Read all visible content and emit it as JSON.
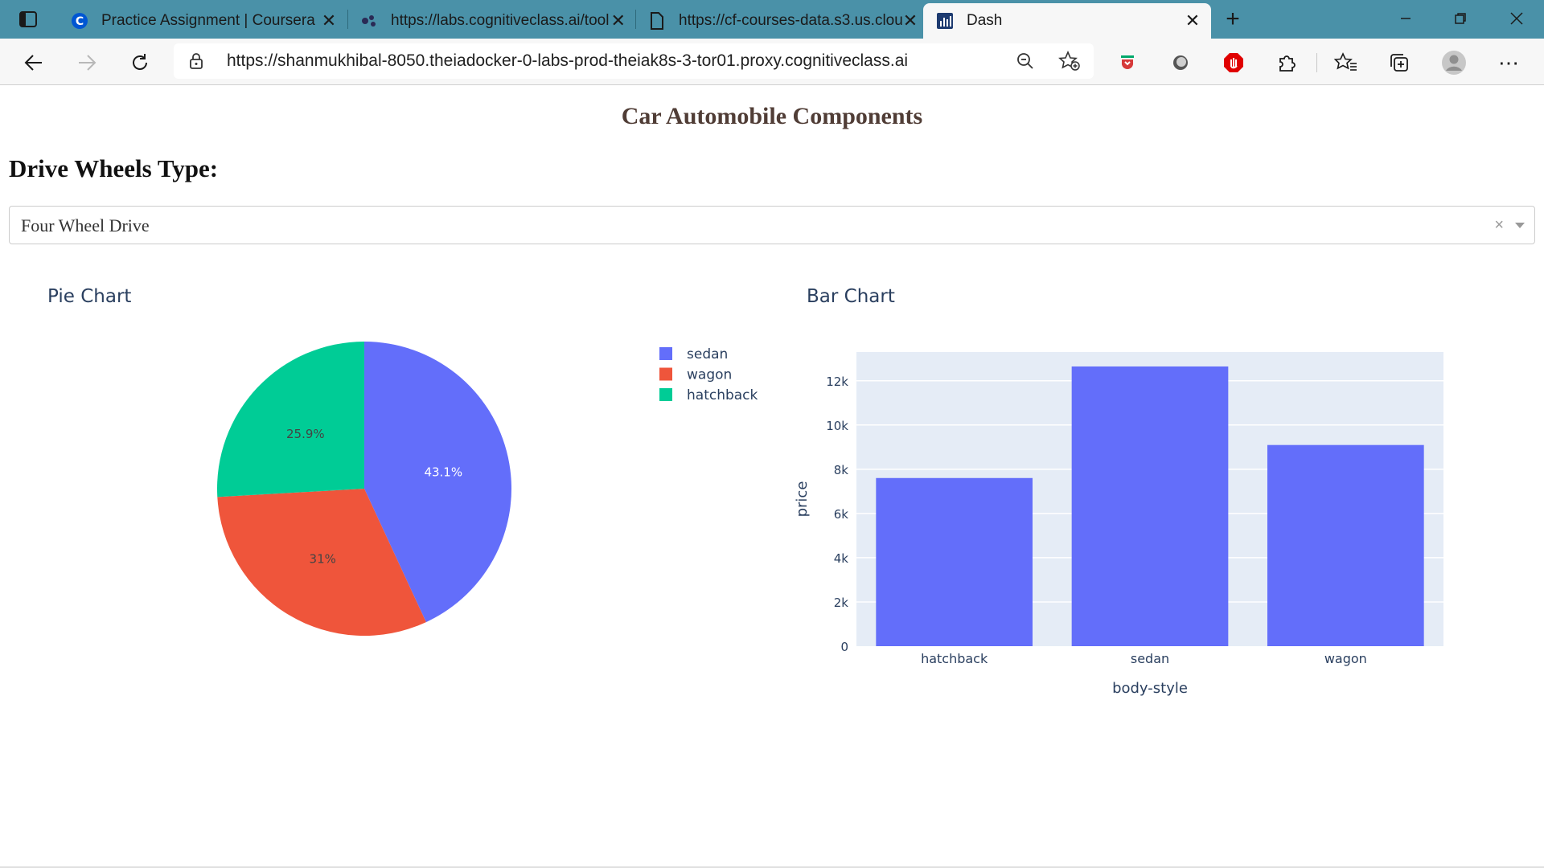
{
  "browser": {
    "tabs": [
      {
        "label": "Practice Assignment | Coursera",
        "icon": "coursera-icon"
      },
      {
        "label": "https://labs.cognitiveclass.ai/tool",
        "icon": "labs-icon"
      },
      {
        "label": "https://cf-courses-data.s3.us.clou",
        "icon": "page-icon"
      },
      {
        "label": "Dash",
        "icon": "dash-icon"
      }
    ],
    "url_host": "https://shanmukhibal-8050.theiadocker-0-labs-prod-theiak8s-3-tor01.proxy.cognitiveclass.ai",
    "close_glyph": "✕",
    "new_tab_glyph": "+",
    "menu_glyph": "⋯"
  },
  "app": {
    "title": "Car Automobile Components",
    "dropdown_label": "Drive Wheels Type:",
    "dropdown_value": "Four Wheel Drive",
    "dropdown_clear": "×"
  },
  "colors": {
    "tabbar": "#4a91a8",
    "title": "#503d36",
    "plot_bg": "#e5ecf6",
    "sedan": "#636efa",
    "wagon": "#ef553b",
    "hatchback": "#00cc96",
    "axis_text": "#2a3f5f"
  },
  "chart_data": [
    {
      "type": "pie",
      "title": "Pie Chart",
      "labels": [
        "sedan",
        "wagon",
        "hatchback"
      ],
      "values": [
        43.1,
        31,
        25.9
      ],
      "text_labels": [
        "43.1%",
        "31%",
        "25.9%"
      ],
      "colors": [
        "#636efa",
        "#ef553b",
        "#00cc96"
      ],
      "legend": "right"
    },
    {
      "type": "bar",
      "title": "Bar Chart",
      "categories": [
        "hatchback",
        "sedan",
        "wagon"
      ],
      "values": [
        7603,
        12647,
        9096
      ],
      "xlabel": "body-style",
      "ylabel": "price",
      "ylim": [
        0,
        13300
      ],
      "yticks": [
        0,
        2000,
        4000,
        6000,
        8000,
        10000,
        12000
      ],
      "ytick_labels": [
        "0",
        "2k",
        "4k",
        "6k",
        "8k",
        "10k",
        "12k"
      ],
      "color": "#636efa",
      "grid": true
    }
  ]
}
